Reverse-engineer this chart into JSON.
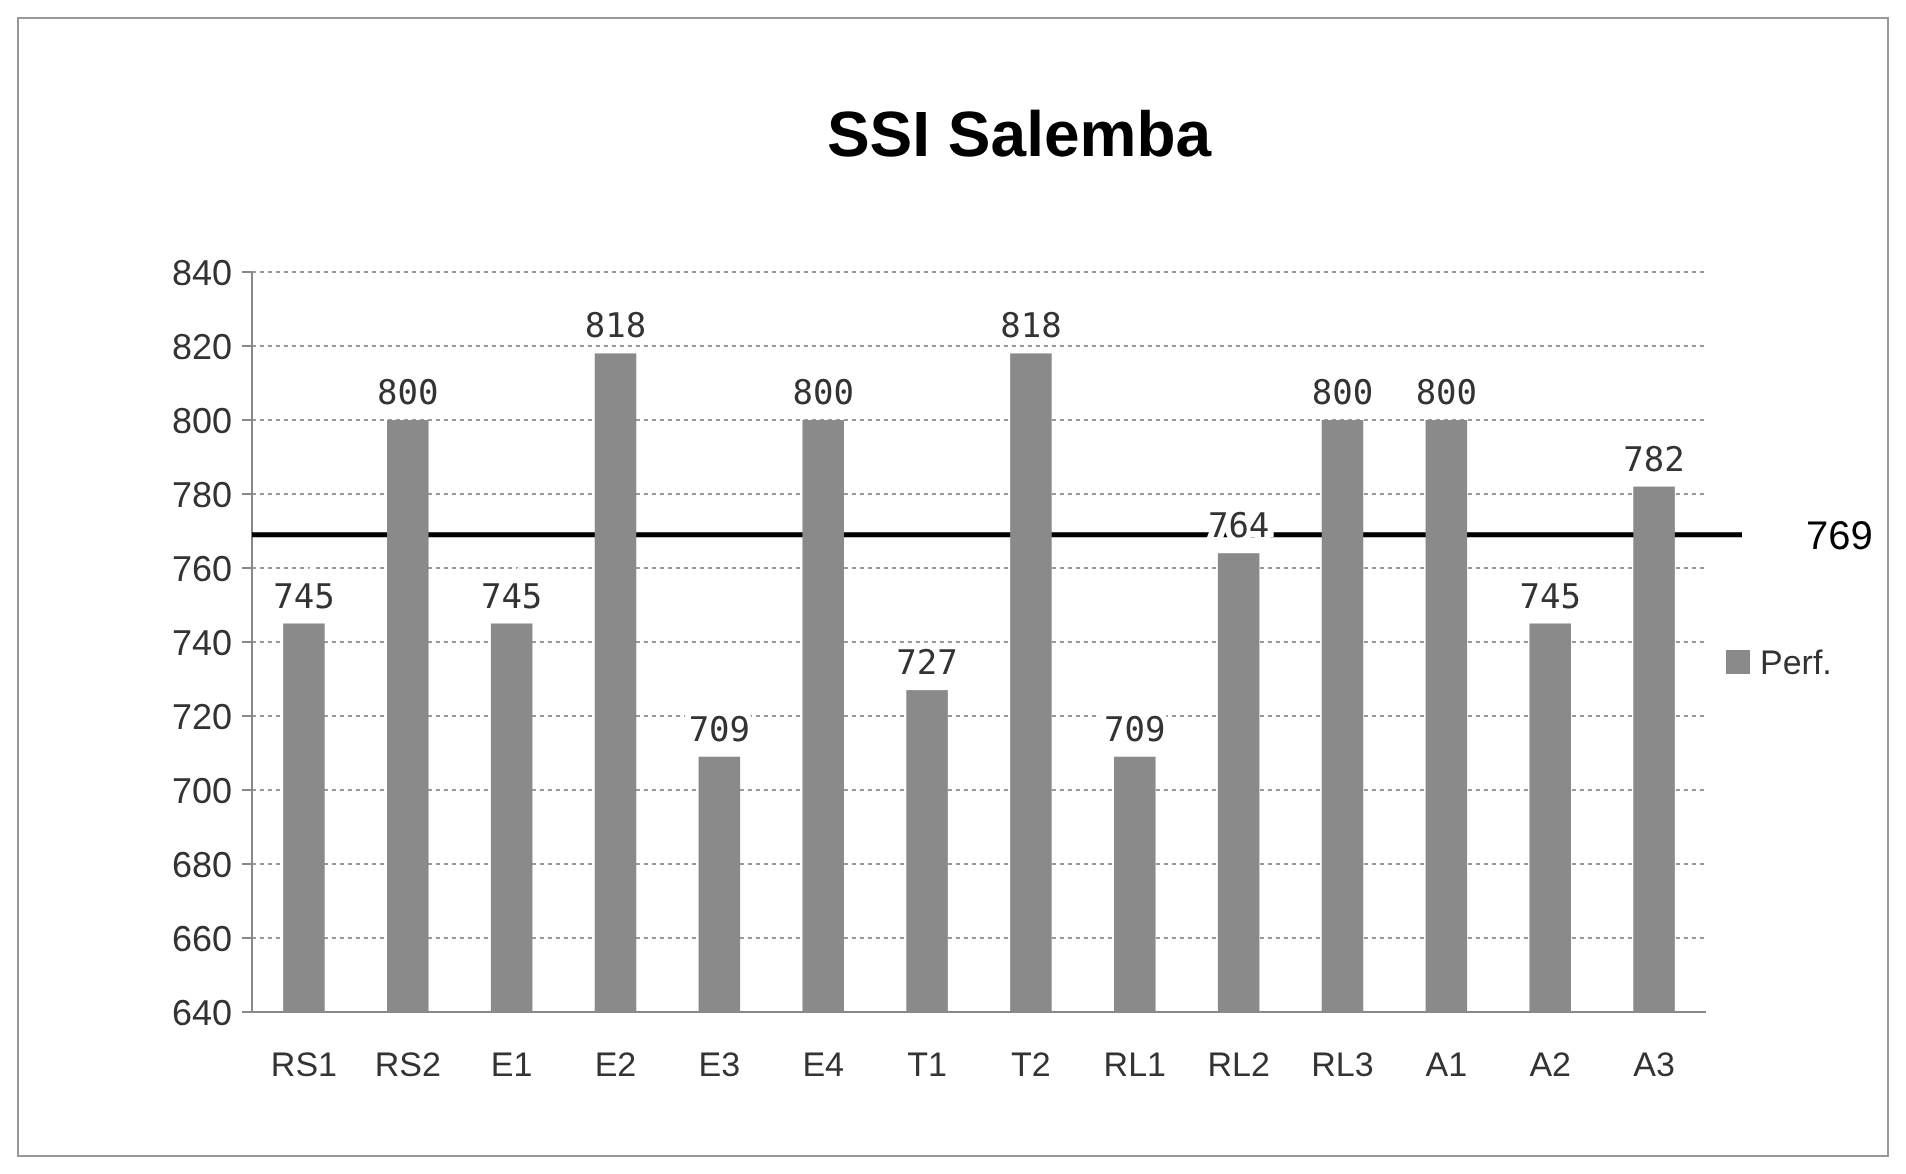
{
  "chart_data": {
    "type": "bar",
    "title": "SSI Salemba",
    "categories": [
      "RS1",
      "RS2",
      "E1",
      "E2",
      "E3",
      "E4",
      "T1",
      "T2",
      "RL1",
      "RL2",
      "RL3",
      "A1",
      "A2",
      "A3"
    ],
    "series": [
      {
        "name": "Perf.",
        "color": "#8a8a8a",
        "values": [
          745,
          800,
          745,
          818,
          709,
          800,
          727,
          818,
          709,
          764,
          800,
          800,
          745,
          782
        ]
      }
    ],
    "ylim": [
      640,
      840
    ],
    "yticks": [
      640,
      660,
      680,
      700,
      720,
      740,
      760,
      780,
      800,
      820,
      840
    ],
    "grid": "y",
    "legend": "right",
    "data_labels": true,
    "ref_lines": [
      {
        "axis": "y",
        "value": 769,
        "label": "769",
        "color": "#000000"
      }
    ]
  }
}
